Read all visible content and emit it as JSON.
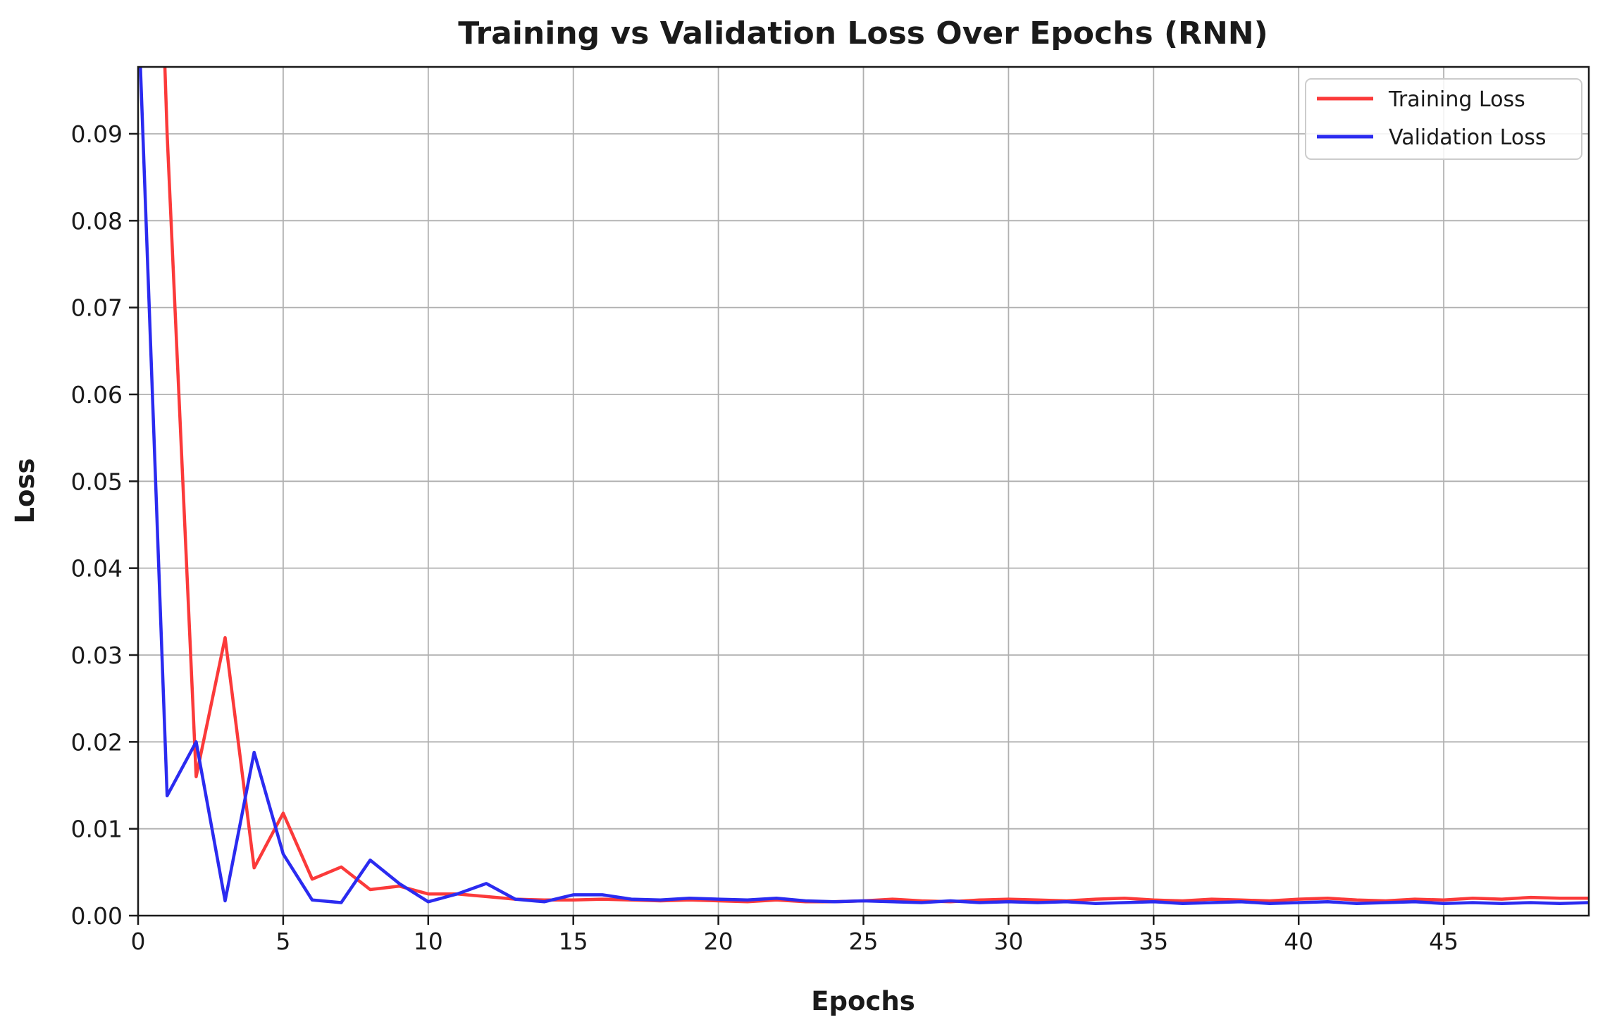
{
  "chart_data": {
    "type": "line",
    "title": "Training vs Validation Loss Over Epochs (RNN)",
    "xlabel": "Epochs",
    "ylabel": "Loss",
    "xlim": [
      0,
      50
    ],
    "ylim": [
      0,
      0.0977
    ],
    "xticks": [
      0,
      5,
      10,
      15,
      20,
      25,
      30,
      35,
      40,
      45
    ],
    "yticks": [
      0.0,
      0.01,
      0.02,
      0.03,
      0.04,
      0.05,
      0.06,
      0.07,
      0.08,
      0.09
    ],
    "grid": true,
    "legend_position": "upper right",
    "x": [
      0,
      1,
      2,
      3,
      4,
      5,
      6,
      7,
      8,
      9,
      10,
      11,
      12,
      13,
      14,
      15,
      16,
      17,
      18,
      19,
      20,
      21,
      22,
      23,
      24,
      25,
      26,
      27,
      28,
      29,
      30,
      31,
      32,
      33,
      34,
      35,
      36,
      37,
      38,
      39,
      40,
      41,
      42,
      43,
      44,
      45,
      46,
      47,
      48,
      49,
      50
    ],
    "series": [
      {
        "name": "Training Loss",
        "color": "#fb3a3a",
        "values": [
          0.19,
          0.09,
          0.016,
          0.032,
          0.0055,
          0.0118,
          0.0042,
          0.0056,
          0.003,
          0.0034,
          0.0025,
          0.0025,
          0.0022,
          0.0019,
          0.0018,
          0.0018,
          0.0019,
          0.0018,
          0.0017,
          0.0018,
          0.0017,
          0.0016,
          0.0018,
          0.0016,
          0.0016,
          0.0017,
          0.0019,
          0.0017,
          0.0016,
          0.0018,
          0.0019,
          0.0018,
          0.0017,
          0.0019,
          0.002,
          0.0018,
          0.0017,
          0.0019,
          0.0018,
          0.0017,
          0.0019,
          0.002,
          0.0018,
          0.0017,
          0.0019,
          0.0018,
          0.002,
          0.0019,
          0.0021,
          0.002,
          0.002
        ]
      },
      {
        "name": "Validation Loss",
        "color": "#2b2bf0",
        "values": [
          0.105,
          0.0138,
          0.02,
          0.0017,
          0.0188,
          0.0071,
          0.0018,
          0.0015,
          0.0064,
          0.0037,
          0.0016,
          0.0025,
          0.0037,
          0.0019,
          0.0016,
          0.0024,
          0.0024,
          0.0019,
          0.0018,
          0.002,
          0.0019,
          0.0018,
          0.002,
          0.0017,
          0.0016,
          0.0017,
          0.0016,
          0.0015,
          0.0017,
          0.0015,
          0.0016,
          0.0015,
          0.0016,
          0.0014,
          0.0015,
          0.0016,
          0.0014,
          0.0015,
          0.0016,
          0.0014,
          0.0015,
          0.0016,
          0.0014,
          0.0015,
          0.0016,
          0.0014,
          0.0015,
          0.0014,
          0.0015,
          0.0014,
          0.0015
        ]
      }
    ],
    "colors": {
      "grid": "#b0b0b0",
      "spine": "#1a1a1a",
      "background": "#ffffff",
      "legend_border": "#cccccc"
    }
  }
}
